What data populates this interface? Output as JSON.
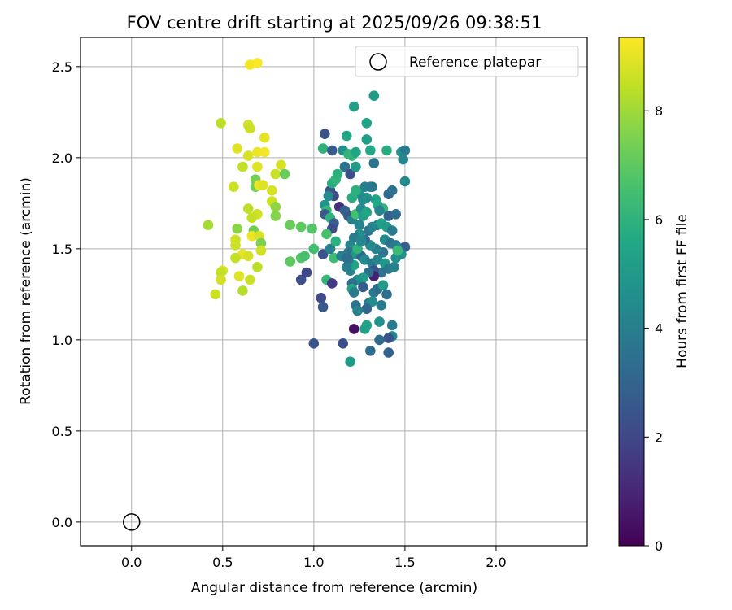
{
  "chart_data": {
    "type": "scatter",
    "title": "FOV centre drift starting at 2025/09/26 09:38:51",
    "xlabel": "Angular distance from reference (arcmin)",
    "ylabel": "Rotation from reference (arcmin)",
    "xlim": [
      -0.28,
      2.5
    ],
    "ylim": [
      -0.13,
      2.66
    ],
    "xticks": [
      0.0,
      0.5,
      1.0,
      1.5,
      2.0
    ],
    "yticks": [
      0.0,
      0.5,
      1.0,
      1.5,
      2.0,
      2.5
    ],
    "xtick_labels": [
      "0.0",
      "0.5",
      "1.0",
      "1.5",
      "2.0"
    ],
    "ytick_labels": [
      "0.0",
      "0.5",
      "1.0",
      "1.5",
      "2.0",
      "2.5"
    ],
    "grid": true,
    "legend": {
      "placement": "upper-right",
      "label": "Reference platepar"
    },
    "reference_point": {
      "x": 0.0,
      "y": 0.0
    },
    "colorbar": {
      "label": "Hours from first FF file",
      "colormap": "viridis",
      "range": [
        0,
        9.35
      ],
      "ticks": [
        0,
        2,
        4,
        6,
        8
      ],
      "tick_labels": [
        "0",
        "2",
        "4",
        "6",
        "8"
      ]
    },
    "points": [
      [
        0.65,
        2.51,
        9.2
      ],
      [
        0.69,
        2.52,
        9.3
      ],
      [
        0.49,
        2.19,
        8.4
      ],
      [
        0.64,
        2.18,
        8.7
      ],
      [
        0.65,
        2.16,
        8.6
      ],
      [
        0.73,
        2.11,
        9.0
      ],
      [
        0.58,
        2.05,
        8.9
      ],
      [
        0.69,
        2.03,
        9.1
      ],
      [
        0.73,
        2.03,
        9.2
      ],
      [
        0.64,
        2.01,
        8.8
      ],
      [
        0.61,
        1.95,
        8.5
      ],
      [
        0.69,
        1.95,
        8.9
      ],
      [
        0.82,
        1.96,
        8.8
      ],
      [
        0.79,
        1.91,
        8.6
      ],
      [
        0.84,
        1.91,
        7.2
      ],
      [
        0.68,
        1.88,
        7.4
      ],
      [
        0.68,
        1.84,
        7.3
      ],
      [
        0.56,
        1.84,
        8.6
      ],
      [
        0.7,
        1.85,
        9.1
      ],
      [
        0.72,
        1.85,
        8.9
      ],
      [
        0.77,
        1.82,
        8.8
      ],
      [
        0.77,
        1.76,
        8.6
      ],
      [
        0.79,
        1.73,
        7.8
      ],
      [
        0.64,
        1.72,
        8.4
      ],
      [
        0.69,
        1.69,
        8.7
      ],
      [
        0.66,
        1.67,
        8.5
      ],
      [
        0.79,
        1.68,
        7.6
      ],
      [
        0.42,
        1.63,
        8.1
      ],
      [
        0.58,
        1.61,
        7.7
      ],
      [
        0.87,
        1.63,
        7.2
      ],
      [
        0.93,
        1.62,
        7.0
      ],
      [
        0.99,
        1.61,
        6.8
      ],
      [
        0.67,
        1.6,
        7.3
      ],
      [
        0.66,
        1.57,
        9.1
      ],
      [
        0.7,
        1.57,
        8.8
      ],
      [
        0.57,
        1.55,
        8.7
      ],
      [
        0.57,
        1.52,
        8.6
      ],
      [
        0.71,
        1.53,
        7.5
      ],
      [
        0.71,
        1.49,
        8.7
      ],
      [
        0.61,
        1.47,
        9.0
      ],
      [
        0.64,
        1.46,
        8.8
      ],
      [
        0.57,
        1.45,
        8.5
      ],
      [
        0.69,
        1.4,
        8.4
      ],
      [
        0.5,
        1.38,
        8.8
      ],
      [
        0.49,
        1.37,
        8.5
      ],
      [
        0.59,
        1.35,
        8.9
      ],
      [
        0.65,
        1.33,
        8.6
      ],
      [
        0.49,
        1.33,
        8.7
      ],
      [
        0.61,
        1.27,
        8.3
      ],
      [
        0.46,
        1.25,
        8.6
      ],
      [
        0.87,
        1.43,
        7.0
      ],
      [
        0.93,
        1.45,
        6.8
      ],
      [
        1.0,
        1.5,
        6.5
      ],
      [
        0.95,
        1.46,
        6.6
      ],
      [
        1.05,
        1.47,
        2.4
      ],
      [
        1.07,
        1.33,
        6.2
      ],
      [
        0.93,
        1.33,
        2.2
      ],
      [
        0.96,
        1.37,
        2.0
      ],
      [
        1.04,
        1.23,
        2.1
      ],
      [
        1.05,
        1.18,
        2.6
      ],
      [
        1.0,
        0.98,
        2.4
      ],
      [
        1.1,
        1.31,
        1.6
      ],
      [
        1.22,
        1.06,
        0.4
      ],
      [
        1.16,
        0.98,
        2.3
      ],
      [
        1.2,
        0.88,
        5.1
      ],
      [
        1.05,
        2.05,
        6.0
      ],
      [
        1.06,
        2.13,
        2.4
      ],
      [
        1.1,
        2.04,
        2.7
      ],
      [
        1.16,
        2.04,
        4.6
      ],
      [
        1.19,
        2.02,
        6.0
      ],
      [
        1.21,
        2.01,
        6.1
      ],
      [
        1.22,
        2.28,
        5.3
      ],
      [
        1.29,
        2.19,
        5.4
      ],
      [
        1.33,
        2.34,
        5.1
      ],
      [
        1.18,
        2.12,
        5.5
      ],
      [
        1.17,
        1.95,
        3.5
      ],
      [
        1.2,
        1.91,
        2.2
      ],
      [
        1.23,
        1.95,
        5.1
      ],
      [
        1.23,
        2.03,
        5.5
      ],
      [
        1.29,
        2.1,
        5.2
      ],
      [
        1.31,
        2.04,
        5.6
      ],
      [
        1.33,
        1.97,
        3.6
      ],
      [
        1.4,
        2.04,
        5.8
      ],
      [
        1.48,
        2.03,
        4.7
      ],
      [
        1.5,
        2.04,
        3.8
      ],
      [
        1.49,
        1.99,
        4.2
      ],
      [
        1.5,
        1.87,
        4.4
      ],
      [
        1.41,
        1.8,
        3.2
      ],
      [
        1.43,
        1.82,
        3.5
      ],
      [
        1.38,
        1.72,
        6.1
      ],
      [
        1.41,
        1.68,
        2.9
      ],
      [
        1.45,
        1.69,
        3.3
      ],
      [
        1.34,
        1.77,
        5.4
      ],
      [
        1.35,
        1.74,
        5.6
      ],
      [
        1.36,
        1.71,
        4.2
      ],
      [
        1.31,
        1.84,
        4.4
      ],
      [
        1.28,
        1.84,
        4.0
      ],
      [
        1.32,
        1.84,
        3.8
      ],
      [
        1.25,
        1.8,
        4.7
      ],
      [
        1.21,
        1.78,
        5.8
      ],
      [
        1.23,
        1.82,
        5.9
      ],
      [
        1.27,
        1.77,
        4.3
      ],
      [
        1.29,
        1.78,
        4.6
      ],
      [
        1.09,
        1.82,
        2.5
      ],
      [
        1.1,
        1.86,
        5.8
      ],
      [
        1.12,
        1.88,
        6.1
      ],
      [
        1.13,
        1.91,
        5.9
      ],
      [
        1.11,
        1.79,
        2.1
      ],
      [
        1.08,
        1.79,
        4.4
      ],
      [
        1.06,
        1.74,
        4.8
      ],
      [
        1.07,
        1.71,
        6.2
      ],
      [
        1.06,
        1.69,
        2.6
      ],
      [
        1.09,
        1.67,
        6.0
      ],
      [
        1.11,
        1.64,
        2.8
      ],
      [
        1.1,
        1.61,
        2.2
      ],
      [
        1.14,
        1.73,
        1.3
      ],
      [
        1.17,
        1.71,
        2.9
      ],
      [
        1.19,
        1.68,
        2.6
      ],
      [
        1.21,
        1.66,
        4.0
      ],
      [
        1.23,
        1.69,
        6.5
      ],
      [
        1.26,
        1.72,
        4.4
      ],
      [
        1.25,
        1.63,
        4.2
      ],
      [
        1.27,
        1.68,
        5.2
      ],
      [
        1.29,
        1.7,
        5.5
      ],
      [
        1.3,
        1.6,
        3.7
      ],
      [
        1.32,
        1.62,
        4.1
      ],
      [
        1.35,
        1.63,
        4.3
      ],
      [
        1.37,
        1.64,
        5.3
      ],
      [
        1.4,
        1.62,
        5.1
      ],
      [
        1.43,
        1.6,
        3.9
      ],
      [
        1.39,
        1.55,
        4.5
      ],
      [
        1.42,
        1.53,
        3.5
      ],
      [
        1.45,
        1.52,
        3.9
      ],
      [
        1.47,
        1.5,
        4.3
      ],
      [
        1.5,
        1.51,
        2.9
      ],
      [
        1.48,
        1.47,
        4.6
      ],
      [
        1.38,
        1.48,
        3.6
      ],
      [
        1.34,
        1.5,
        4.1
      ],
      [
        1.31,
        1.52,
        4.4
      ],
      [
        1.28,
        1.55,
        3.3
      ],
      [
        1.25,
        1.58,
        4.6
      ],
      [
        1.22,
        1.56,
        3.9
      ],
      [
        1.2,
        1.52,
        4.2
      ],
      [
        1.19,
        1.48,
        3.6
      ],
      [
        1.23,
        1.47,
        4.9
      ],
      [
        1.26,
        1.46,
        3.1
      ],
      [
        1.28,
        1.44,
        4.4
      ],
      [
        1.32,
        1.42,
        3.8
      ],
      [
        1.35,
        1.44,
        4.2
      ],
      [
        1.39,
        1.42,
        5.0
      ],
      [
        1.41,
        1.39,
        3.8
      ],
      [
        1.44,
        1.4,
        4.1
      ],
      [
        1.37,
        1.37,
        3.5
      ],
      [
        1.33,
        1.38,
        2.5
      ],
      [
        1.33,
        1.35,
        0.8
      ],
      [
        1.3,
        1.37,
        3.4
      ],
      [
        1.27,
        1.34,
        5.2
      ],
      [
        1.24,
        1.33,
        4.8
      ],
      [
        1.21,
        1.31,
        3.4
      ],
      [
        1.2,
        1.38,
        4.3
      ],
      [
        1.22,
        1.41,
        5.4
      ],
      [
        1.19,
        1.44,
        3.8
      ],
      [
        1.18,
        1.4,
        4.0
      ],
      [
        1.21,
        1.28,
        5.5
      ],
      [
        1.22,
        1.26,
        3.9
      ],
      [
        1.27,
        1.29,
        2.7
      ],
      [
        1.33,
        1.26,
        3.7
      ],
      [
        1.35,
        1.28,
        3.3
      ],
      [
        1.38,
        1.3,
        5.1
      ],
      [
        1.4,
        1.25,
        3.4
      ],
      [
        1.37,
        1.19,
        3.8
      ],
      [
        1.3,
        1.2,
        4.0
      ],
      [
        1.32,
        1.21,
        4.5
      ],
      [
        1.29,
        1.17,
        3.1
      ],
      [
        1.23,
        1.19,
        3.6
      ],
      [
        1.24,
        1.16,
        4.1
      ],
      [
        1.29,
        1.08,
        5.4
      ],
      [
        1.28,
        1.06,
        5.3
      ],
      [
        1.36,
        1.1,
        4.7
      ],
      [
        1.43,
        1.08,
        3.9
      ],
      [
        1.43,
        1.02,
        4.4
      ],
      [
        1.41,
        1.01,
        2.4
      ],
      [
        1.36,
        1.0,
        3.2
      ],
      [
        1.31,
        0.94,
        3.3
      ],
      [
        1.41,
        0.93,
        2.9
      ],
      [
        1.11,
        1.45,
        6.4
      ],
      [
        1.09,
        1.5,
        4.0
      ],
      [
        1.07,
        1.58,
        6.6
      ],
      [
        1.12,
        1.54,
        5.9
      ],
      [
        1.15,
        1.46,
        4.1
      ],
      [
        1.18,
        1.45,
        3.3
      ],
      [
        1.24,
        1.5,
        6.0
      ],
      [
        1.26,
        1.54,
        4.3
      ],
      [
        1.45,
        1.45,
        4.6
      ],
      [
        1.46,
        1.49,
        6.3
      ]
    ]
  }
}
